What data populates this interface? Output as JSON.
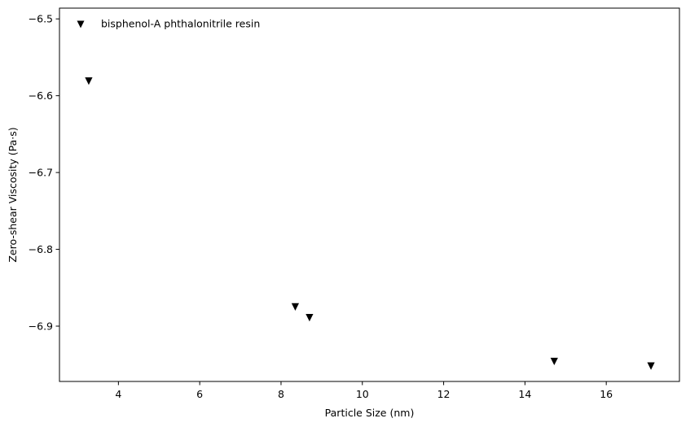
{
  "chart_data": {
    "type": "scatter",
    "title": "",
    "xlabel": "Particle Size (nm)",
    "ylabel": "Zero-shear Viscosity (Pa·s)",
    "xlim": [
      2.55,
      17.8
    ],
    "ylim": [
      -6.972,
      -6.486
    ],
    "xticks": [
      4,
      6,
      8,
      10,
      12,
      14,
      16
    ],
    "xtick_labels": [
      "4",
      "6",
      "8",
      "10",
      "12",
      "14",
      "16"
    ],
    "yticks": [
      -6.5,
      -6.6,
      -6.7,
      -6.8,
      -6.9
    ],
    "ytick_labels": [
      "−6.5",
      "−6.6",
      "−6.7",
      "−6.8",
      "−6.9"
    ],
    "grid": false,
    "legend_position": "upper-left",
    "marker": "triangle-down",
    "color": "#000000",
    "series": [
      {
        "name": "bisphenol-A phthalonitrile resin",
        "points": [
          {
            "x": 3.27,
            "y": -6.581
          },
          {
            "x": 8.35,
            "y": -6.875
          },
          {
            "x": 8.7,
            "y": -6.889
          },
          {
            "x": 14.72,
            "y": -6.946
          },
          {
            "x": 17.1,
            "y": -6.952
          }
        ]
      }
    ]
  }
}
